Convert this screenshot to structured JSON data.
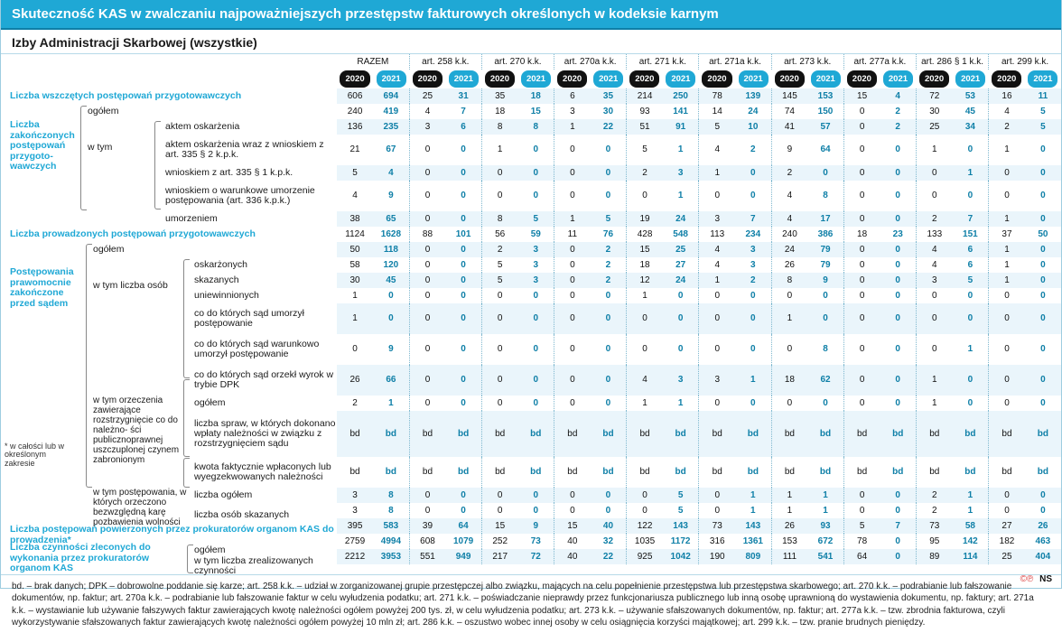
{
  "title": "Skuteczność KAS w zwalczaniu najpoważniejszych przestępstw fakturowych określonych w kodeksie karnym",
  "subtitle": "Izby Administracji Skarbowej (wszystkie)",
  "columns": [
    "RAZEM",
    "art. 258 k.k.",
    "art. 270 k.k.",
    "art. 270a k.k.",
    "art. 271 k.k.",
    "art. 271a k.k.",
    "art. 273 k.k.",
    "art. 277a k.k.",
    "art. 286 § 1 k.k.",
    "art. 299 k.k."
  ],
  "years": [
    "2020",
    "2021"
  ],
  "labels": {
    "r1": "Liczba wszczętych postępowań przygotowawczych",
    "r2g": "Liczba zakończonych postępowań przygoto- wawczych",
    "r2a": "ogółem",
    "r2b": "w tym",
    "r2b1": "aktem oskarżenia",
    "r2b2": "aktem oskarżenia wraz z wnioskiem z art. 335 § 2 k.p.k.",
    "r2b3": "wnioskiem z art. 335 § 1 k.p.k.",
    "r2b4": "wnioskiem o warunkowe umorzenie postępowania (art. 336 k.p.k.)",
    "r2b5": "umorzeniem",
    "r3": "Liczba prowadzonych postępowań przygotowawczych",
    "r4g": "Postępowania prawomocnie zakończone przed sądem",
    "r4a": "ogółem",
    "r4b": "w tym liczba osób",
    "r4b1": "oskarżonych",
    "r4b2": "skazanych",
    "r4b3": "uniewinnionych",
    "r4b4": "co do których sąd umorzył postępowanie",
    "r4b5": "co do których sąd warunkowo umorzył postępowanie",
    "r4b6": "co do których sąd orzekł wyrok w trybie DPK",
    "r4c": "w tym orzeczenia zawierające rozstrzygnięcie co do należno- ści publicznoprawnej uszczuplonej czynem zabronionym",
    "r4c1": "ogółem",
    "r4c2": "liczba spraw, w których dokonano wpłaty należności w związku z rozstrzygnięciem sądu",
    "r4c3": "kwota faktycznie wpłaconych lub wyegzekwowanych należności",
    "r4d": "w tym postępowania, w których orzeczono bezwzględną karę pozbawienia wolności",
    "r4d1": "liczba ogółem",
    "r4d2": "liczba osób skazanych",
    "note": "* w całości lub w określonym zakresie",
    "r5": "Liczba postępowań powierzonych przez prokuratorów organom KAS do prowadzenia*",
    "r6g": "Liczba czynności zleconych do wykonania przez prokuratorów organom KAS",
    "r6a": "ogółem",
    "r6b": "w tym liczba zrealizowanych czynności"
  },
  "rows": [
    [
      "606",
      "694",
      "25",
      "31",
      "35",
      "18",
      "6",
      "35",
      "214",
      "250",
      "78",
      "139",
      "145",
      "153",
      "15",
      "4",
      "72",
      "53",
      "16",
      "11"
    ],
    [
      "240",
      "419",
      "4",
      "7",
      "18",
      "15",
      "3",
      "30",
      "93",
      "141",
      "14",
      "24",
      "74",
      "150",
      "0",
      "2",
      "30",
      "45",
      "4",
      "5"
    ],
    [
      "136",
      "235",
      "3",
      "6",
      "8",
      "8",
      "1",
      "22",
      "51",
      "91",
      "5",
      "10",
      "41",
      "57",
      "0",
      "2",
      "25",
      "34",
      "2",
      "5"
    ],
    [
      "21",
      "67",
      "0",
      "0",
      "1",
      "0",
      "0",
      "0",
      "5",
      "1",
      "4",
      "2",
      "9",
      "64",
      "0",
      "0",
      "1",
      "0",
      "1",
      "0"
    ],
    [
      "5",
      "4",
      "0",
      "0",
      "0",
      "0",
      "0",
      "0",
      "2",
      "3",
      "1",
      "0",
      "2",
      "0",
      "0",
      "0",
      "0",
      "1",
      "0",
      "0"
    ],
    [
      "4",
      "9",
      "0",
      "0",
      "0",
      "0",
      "0",
      "0",
      "0",
      "1",
      "0",
      "0",
      "4",
      "8",
      "0",
      "0",
      "0",
      "0",
      "0",
      "0"
    ],
    [
      "38",
      "65",
      "0",
      "0",
      "8",
      "5",
      "1",
      "5",
      "19",
      "24",
      "3",
      "7",
      "4",
      "17",
      "0",
      "0",
      "2",
      "7",
      "1",
      "0"
    ],
    [
      "1124",
      "1628",
      "88",
      "101",
      "56",
      "59",
      "11",
      "76",
      "428",
      "548",
      "113",
      "234",
      "240",
      "386",
      "18",
      "23",
      "133",
      "151",
      "37",
      "50"
    ],
    [
      "50",
      "118",
      "0",
      "0",
      "2",
      "3",
      "0",
      "2",
      "15",
      "25",
      "4",
      "3",
      "24",
      "79",
      "0",
      "0",
      "4",
      "6",
      "1",
      "0"
    ],
    [
      "58",
      "120",
      "0",
      "0",
      "5",
      "3",
      "0",
      "2",
      "18",
      "27",
      "4",
      "3",
      "26",
      "79",
      "0",
      "0",
      "4",
      "6",
      "1",
      "0"
    ],
    [
      "30",
      "45",
      "0",
      "0",
      "5",
      "3",
      "0",
      "2",
      "12",
      "24",
      "1",
      "2",
      "8",
      "9",
      "0",
      "0",
      "3",
      "5",
      "1",
      "0"
    ],
    [
      "1",
      "0",
      "0",
      "0",
      "0",
      "0",
      "0",
      "0",
      "1",
      "0",
      "0",
      "0",
      "0",
      "0",
      "0",
      "0",
      "0",
      "0",
      "0",
      "0"
    ],
    [
      "1",
      "0",
      "0",
      "0",
      "0",
      "0",
      "0",
      "0",
      "0",
      "0",
      "0",
      "0",
      "1",
      "0",
      "0",
      "0",
      "0",
      "0",
      "0",
      "0"
    ],
    [
      "0",
      "9",
      "0",
      "0",
      "0",
      "0",
      "0",
      "0",
      "0",
      "0",
      "0",
      "0",
      "0",
      "8",
      "0",
      "0",
      "0",
      "1",
      "0",
      "0"
    ],
    [
      "26",
      "66",
      "0",
      "0",
      "0",
      "0",
      "0",
      "0",
      "4",
      "3",
      "3",
      "1",
      "18",
      "62",
      "0",
      "0",
      "1",
      "0",
      "0",
      "0"
    ],
    [
      "2",
      "1",
      "0",
      "0",
      "0",
      "0",
      "0",
      "0",
      "1",
      "1",
      "0",
      "0",
      "0",
      "0",
      "0",
      "0",
      "1",
      "0",
      "0",
      "0"
    ],
    [
      "bd",
      "bd",
      "bd",
      "bd",
      "bd",
      "bd",
      "bd",
      "bd",
      "bd",
      "bd",
      "bd",
      "bd",
      "bd",
      "bd",
      "bd",
      "bd",
      "bd",
      "bd",
      "bd",
      "bd"
    ],
    [
      "bd",
      "bd",
      "bd",
      "bd",
      "bd",
      "bd",
      "bd",
      "bd",
      "bd",
      "bd",
      "bd",
      "bd",
      "bd",
      "bd",
      "bd",
      "bd",
      "bd",
      "bd",
      "bd",
      "bd"
    ],
    [
      "3",
      "8",
      "0",
      "0",
      "0",
      "0",
      "0",
      "0",
      "0",
      "5",
      "0",
      "1",
      "1",
      "1",
      "0",
      "0",
      "2",
      "1",
      "0",
      "0"
    ],
    [
      "3",
      "8",
      "0",
      "0",
      "0",
      "0",
      "0",
      "0",
      "0",
      "5",
      "0",
      "1",
      "1",
      "1",
      "0",
      "0",
      "2",
      "1",
      "0",
      "0"
    ],
    [
      "395",
      "583",
      "39",
      "64",
      "15",
      "9",
      "15",
      "40",
      "122",
      "143",
      "73",
      "143",
      "26",
      "93",
      "5",
      "7",
      "73",
      "58",
      "27",
      "26"
    ],
    [
      "2759",
      "4994",
      "608",
      "1079",
      "252",
      "73",
      "40",
      "32",
      "1035",
      "1172",
      "316",
      "1361",
      "153",
      "672",
      "78",
      "0",
      "95",
      "142",
      "182",
      "463"
    ],
    [
      "2212",
      "3953",
      "551",
      "949",
      "217",
      "72",
      "40",
      "22",
      "925",
      "1042",
      "190",
      "809",
      "111",
      "541",
      "64",
      "0",
      "89",
      "114",
      "25",
      "404"
    ]
  ],
  "footnote": "bd. – brak danych; DPK – dobrowolne poddanie się karze; art. 258 k.k. – udział w zorganizowanej grupie przestępczej albo związku, mających na celu popełnienie przestępstwa lub przestępstwa skarbowego; art. 270 k.k. – podrabianie lub fałszowanie dokumentów, np. faktur; art. 270a k.k. – podrabianie lub fałszowanie faktur w celu wyłudzenia podatku; art. 271 k.k. – poświadczanie nieprawdy przez funkcjonariusza publicznego lub inną osobę uprawnioną do wystawienia dokumentu, np. faktury; art. 271a k.k. – wystawianie lub używanie fałszywych faktur zawierających kwotę należności ogółem powyżej 200 tys. zł, w celu wyłudzenia podatku; art. 273 k.k. – używanie sfałszowanych dokumentów, np. faktur; art. 277a k.k. – tzw. zbrodnia fakturowa, czyli wykorzystywanie sfałszowanych faktur zawierających kwotę należności ogółem powyżej 10 mln zł; art. 286 k.k. – oszustwo wobec innej osoby w celu osiągnięcia korzyści majątkowej; art. 299 k.k. – tzw. pranie brudnych pieniędzy.",
  "credit": "NS"
}
